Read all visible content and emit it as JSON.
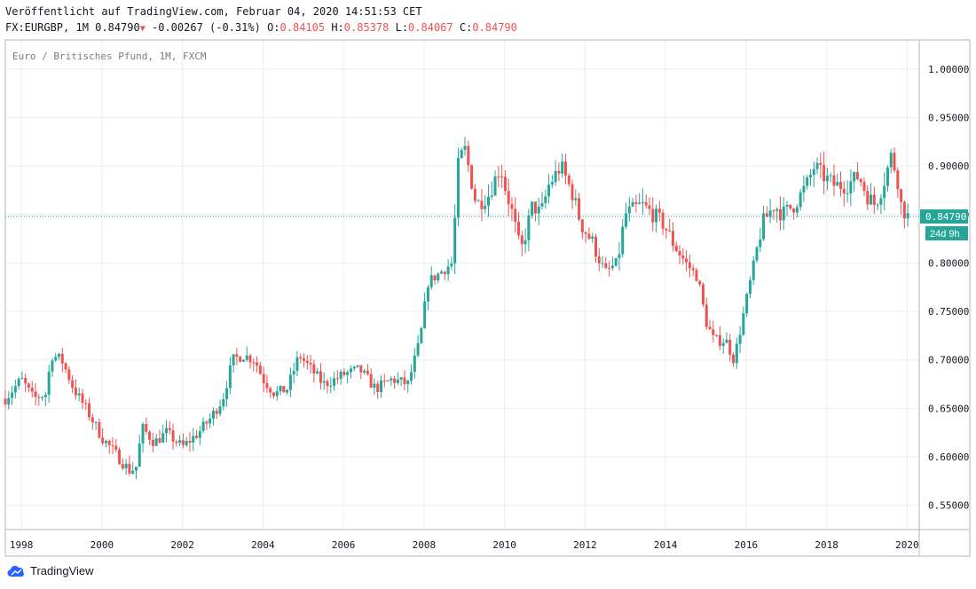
{
  "header": {
    "published": "Veröffentlicht auf TradingView.com, Februar 04, 2020 14:51:53 CET",
    "symbol": "FX:EURGBP, 1M",
    "last": "0.84790",
    "change": "-0.00267 (-0.31%)",
    "o_label": "O:",
    "o_value": "0.84105",
    "h_label": "H:",
    "h_value": "0.85378",
    "l_label": "L:",
    "l_value": "0.84067",
    "c_label": "C:",
    "c_value": "0.84790"
  },
  "footer": {
    "brand": "TradingView",
    "logo_icon": "tradingview-cloud-icon"
  },
  "colors": {
    "up": "#26a69a",
    "down": "#ef5350",
    "grid": "#e9edf3",
    "price_line": "#26a69a",
    "axis_text": "#131722"
  },
  "chart_data": {
    "type": "candlestick",
    "title": "Euro / Britisches Pfund, 1M, FXCM",
    "x_ticks": [
      "1998",
      "2000",
      "2002",
      "2004",
      "2006",
      "2008",
      "2010",
      "2012",
      "2014",
      "2016",
      "2018",
      "2020"
    ],
    "y_ticks": [
      "1.00000",
      "0.95000",
      "0.90000",
      "0.85000",
      "0.80000",
      "0.75000",
      "0.70000",
      "0.65000",
      "0.60000",
      "0.55000"
    ],
    "ylim": [
      0.525,
      1.03
    ],
    "xlim": [
      1997.6,
      2020.3
    ],
    "last_price": "0.84790",
    "countdown": "24d 9h",
    "grid": true,
    "monthly_closes": [
      [
        1997.6,
        0.66
      ],
      [
        1998.0,
        0.68
      ],
      [
        1998.3,
        0.66
      ],
      [
        1998.6,
        0.665
      ],
      [
        1998.75,
        0.705
      ],
      [
        1999.0,
        0.7
      ],
      [
        1999.3,
        0.67
      ],
      [
        1999.6,
        0.65
      ],
      [
        2000.0,
        0.62
      ],
      [
        2000.4,
        0.6
      ],
      [
        2000.7,
        0.585
      ],
      [
        2000.85,
        0.59
      ],
      [
        2001.0,
        0.63
      ],
      [
        2001.3,
        0.615
      ],
      [
        2001.6,
        0.625
      ],
      [
        2002.0,
        0.61
      ],
      [
        2002.4,
        0.625
      ],
      [
        2002.7,
        0.64
      ],
      [
        2003.0,
        0.66
      ],
      [
        2003.25,
        0.7
      ],
      [
        2003.5,
        0.705
      ],
      [
        2003.8,
        0.7
      ],
      [
        2004.0,
        0.68
      ],
      [
        2004.3,
        0.665
      ],
      [
        2004.6,
        0.67
      ],
      [
        2004.9,
        0.705
      ],
      [
        2005.2,
        0.69
      ],
      [
        2005.5,
        0.675
      ],
      [
        2005.8,
        0.68
      ],
      [
        2006.0,
        0.685
      ],
      [
        2006.4,
        0.69
      ],
      [
        2006.8,
        0.67
      ],
      [
        2007.2,
        0.68
      ],
      [
        2007.6,
        0.675
      ],
      [
        2007.9,
        0.72
      ],
      [
        2008.1,
        0.78
      ],
      [
        2008.4,
        0.79
      ],
      [
        2008.7,
        0.8
      ],
      [
        2008.85,
        0.9
      ],
      [
        2009.0,
        0.92
      ],
      [
        2009.3,
        0.86
      ],
      [
        2009.6,
        0.87
      ],
      [
        2009.9,
        0.9
      ],
      [
        2010.0,
        0.88
      ],
      [
        2010.2,
        0.85
      ],
      [
        2010.4,
        0.81
      ],
      [
        2010.7,
        0.86
      ],
      [
        2010.9,
        0.85
      ],
      [
        2011.1,
        0.88
      ],
      [
        2011.4,
        0.9
      ],
      [
        2011.7,
        0.87
      ],
      [
        2011.9,
        0.84
      ],
      [
        2012.2,
        0.82
      ],
      [
        2012.5,
        0.79
      ],
      [
        2012.8,
        0.8
      ],
      [
        2013.0,
        0.85
      ],
      [
        2013.4,
        0.86
      ],
      [
        2013.7,
        0.85
      ],
      [
        2013.95,
        0.84
      ],
      [
        2014.2,
        0.82
      ],
      [
        2014.5,
        0.8
      ],
      [
        2014.8,
        0.785
      ],
      [
        2015.0,
        0.74
      ],
      [
        2015.2,
        0.72
      ],
      [
        2015.5,
        0.72
      ],
      [
        2015.7,
        0.7
      ],
      [
        2015.9,
        0.74
      ],
      [
        2016.1,
        0.78
      ],
      [
        2016.4,
        0.84
      ],
      [
        2016.7,
        0.86
      ],
      [
        2016.9,
        0.85
      ],
      [
        2017.2,
        0.86
      ],
      [
        2017.5,
        0.88
      ],
      [
        2017.7,
        0.9
      ],
      [
        2017.9,
        0.89
      ],
      [
        2018.2,
        0.88
      ],
      [
        2018.5,
        0.88
      ],
      [
        2018.8,
        0.89
      ],
      [
        2019.0,
        0.87
      ],
      [
        2019.2,
        0.86
      ],
      [
        2019.4,
        0.88
      ],
      [
        2019.6,
        0.91
      ],
      [
        2019.75,
        0.89
      ],
      [
        2019.85,
        0.86
      ],
      [
        2020.0,
        0.848
      ]
    ]
  }
}
